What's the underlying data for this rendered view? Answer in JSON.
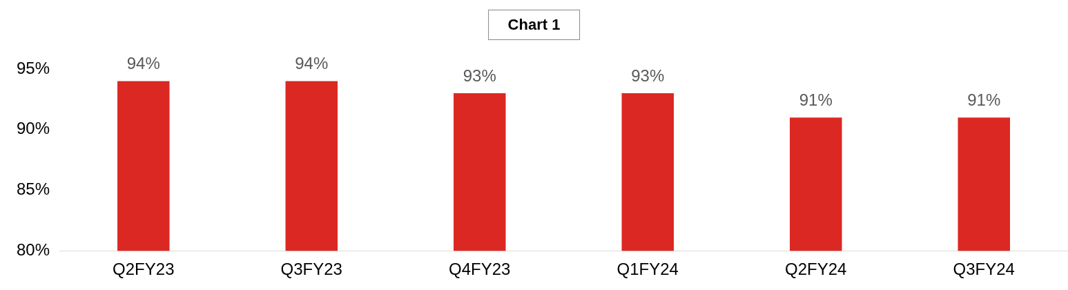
{
  "chart_data": {
    "type": "bar",
    "title": "Chart 1",
    "categories": [
      "Q2FY23",
      "Q3FY23",
      "Q4FY23",
      "Q1FY24",
      "Q2FY24",
      "Q3FY24"
    ],
    "values": [
      94,
      94,
      93,
      93,
      91,
      91
    ],
    "color": "#dc2822",
    "value_labels": [
      "94%",
      "94%",
      "93%",
      "93%",
      "91%",
      "91%"
    ],
    "ylim": [
      80,
      95
    ],
    "yticks": [
      {
        "value": 80,
        "label": "80%"
      },
      {
        "value": 85,
        "label": "85%"
      },
      {
        "value": 90,
        "label": "90%"
      },
      {
        "value": 95,
        "label": "95%"
      }
    ],
    "grid": false,
    "legend": false
  }
}
